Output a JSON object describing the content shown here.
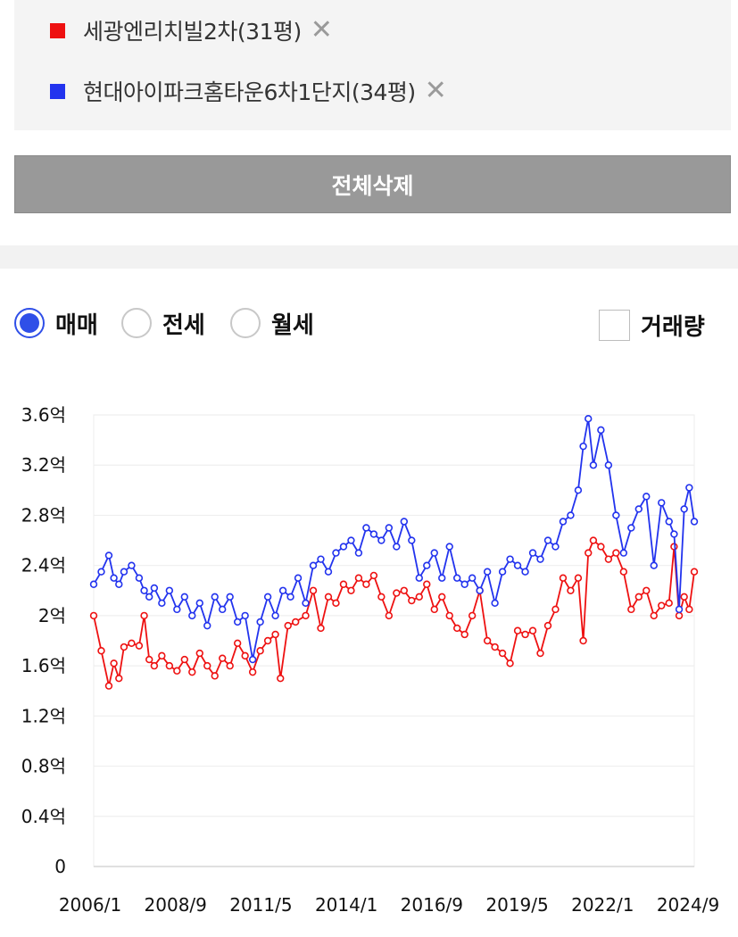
{
  "compare": {
    "items": [
      {
        "label": "세광엔리치빌2차(31평)",
        "color": "#ee1111",
        "remove_icon": "close-icon"
      },
      {
        "label": "현대아이파크홈타운6차1단지(34평)",
        "color": "#2233ee",
        "remove_icon": "close-icon"
      }
    ],
    "delete_all_label": "전체삭제"
  },
  "filters": {
    "radios": [
      {
        "label": "매매",
        "checked": true
      },
      {
        "label": "전세",
        "checked": false
      },
      {
        "label": "월세",
        "checked": false
      }
    ],
    "volume_label": "거래량",
    "volume_checked": false
  },
  "chart_data": {
    "type": "line",
    "x_tick_labels": [
      "2006/1",
      "2008/9",
      "2011/5",
      "2014/1",
      "2016/9",
      "2019/5",
      "2022/1",
      "2024/9"
    ],
    "y_tick_labels": [
      "0",
      "0.4억",
      "0.8억",
      "1.2억",
      "1.6억",
      "2억",
      "2.4억",
      "2.8억",
      "3.2억",
      "3.6억"
    ],
    "y_unit": "억",
    "ylim": [
      0,
      3.6
    ],
    "y_ticks": [
      0,
      0.4,
      0.8,
      1.2,
      1.6,
      2.0,
      2.4,
      2.8,
      3.2,
      3.6
    ],
    "xlim": [
      "2006-01",
      "2025-11"
    ],
    "grid": true,
    "series": [
      {
        "name": "세광엔리치빌2차(31평)",
        "color": "#ee1111",
        "points": [
          [
            "2006-01",
            2.0
          ],
          [
            "2006-04",
            1.72
          ],
          [
            "2006-07",
            1.44
          ],
          [
            "2006-09",
            1.62
          ],
          [
            "2006-11",
            1.5
          ],
          [
            "2007-01",
            1.75
          ],
          [
            "2007-04",
            1.78
          ],
          [
            "2007-07",
            1.76
          ],
          [
            "2007-09",
            2.0
          ],
          [
            "2007-11",
            1.65
          ],
          [
            "2008-01",
            1.6
          ],
          [
            "2008-04",
            1.68
          ],
          [
            "2008-07",
            1.6
          ],
          [
            "2008-10",
            1.56
          ],
          [
            "2009-01",
            1.65
          ],
          [
            "2009-04",
            1.55
          ],
          [
            "2009-07",
            1.7
          ],
          [
            "2009-10",
            1.6
          ],
          [
            "2010-01",
            1.52
          ],
          [
            "2010-04",
            1.66
          ],
          [
            "2010-07",
            1.6
          ],
          [
            "2010-10",
            1.78
          ],
          [
            "2011-01",
            1.68
          ],
          [
            "2011-04",
            1.55
          ],
          [
            "2011-07",
            1.72
          ],
          [
            "2011-10",
            1.8
          ],
          [
            "2012-01",
            1.85
          ],
          [
            "2012-03",
            1.5
          ],
          [
            "2012-06",
            1.92
          ],
          [
            "2012-09",
            1.95
          ],
          [
            "2013-01",
            2.0
          ],
          [
            "2013-04",
            2.2
          ],
          [
            "2013-07",
            1.9
          ],
          [
            "2013-10",
            2.15
          ],
          [
            "2014-01",
            2.1
          ],
          [
            "2014-04",
            2.25
          ],
          [
            "2014-07",
            2.2
          ],
          [
            "2014-10",
            2.3
          ],
          [
            "2015-01",
            2.25
          ],
          [
            "2015-04",
            2.32
          ],
          [
            "2015-07",
            2.15
          ],
          [
            "2015-10",
            2.0
          ],
          [
            "2016-01",
            2.18
          ],
          [
            "2016-04",
            2.2
          ],
          [
            "2016-07",
            2.12
          ],
          [
            "2016-10",
            2.15
          ],
          [
            "2017-01",
            2.25
          ],
          [
            "2017-04",
            2.05
          ],
          [
            "2017-07",
            2.15
          ],
          [
            "2017-10",
            2.0
          ],
          [
            "2018-01",
            1.9
          ],
          [
            "2018-04",
            1.85
          ],
          [
            "2018-07",
            2.0
          ],
          [
            "2018-10",
            2.2
          ],
          [
            "2019-01",
            1.8
          ],
          [
            "2019-04",
            1.75
          ],
          [
            "2019-07",
            1.7
          ],
          [
            "2019-10",
            1.62
          ],
          [
            "2020-01",
            1.88
          ],
          [
            "2020-04",
            1.85
          ],
          [
            "2020-07",
            1.88
          ],
          [
            "2020-10",
            1.7
          ],
          [
            "2021-01",
            1.92
          ],
          [
            "2021-04",
            2.05
          ],
          [
            "2021-07",
            2.3
          ],
          [
            "2021-10",
            2.2
          ],
          [
            "2022-01",
            2.3
          ],
          [
            "2022-03",
            1.8
          ],
          [
            "2022-05",
            2.5
          ],
          [
            "2022-07",
            2.6
          ],
          [
            "2022-10",
            2.55
          ],
          [
            "2023-01",
            2.45
          ],
          [
            "2023-04",
            2.5
          ],
          [
            "2023-07",
            2.35
          ],
          [
            "2023-10",
            2.05
          ],
          [
            "2024-01",
            2.15
          ],
          [
            "2024-04",
            2.2
          ],
          [
            "2024-07",
            2.0
          ],
          [
            "2024-10",
            2.08
          ],
          [
            "2025-01",
            2.1
          ],
          [
            "2025-03",
            2.55
          ],
          [
            "2025-05",
            2.0
          ],
          [
            "2025-07",
            2.15
          ],
          [
            "2025-09",
            2.05
          ],
          [
            "2025-11",
            2.35
          ]
        ]
      },
      {
        "name": "현대아이파크홈타운6차1단지(34평)",
        "color": "#2233ee",
        "points": [
          [
            "2006-01",
            2.25
          ],
          [
            "2006-04",
            2.35
          ],
          [
            "2006-07",
            2.48
          ],
          [
            "2006-09",
            2.3
          ],
          [
            "2006-11",
            2.25
          ],
          [
            "2007-01",
            2.35
          ],
          [
            "2007-04",
            2.4
          ],
          [
            "2007-07",
            2.3
          ],
          [
            "2007-09",
            2.2
          ],
          [
            "2007-11",
            2.15
          ],
          [
            "2008-01",
            2.22
          ],
          [
            "2008-04",
            2.1
          ],
          [
            "2008-07",
            2.2
          ],
          [
            "2008-10",
            2.05
          ],
          [
            "2009-01",
            2.15
          ],
          [
            "2009-04",
            2.0
          ],
          [
            "2009-07",
            2.1
          ],
          [
            "2009-10",
            1.92
          ],
          [
            "2010-01",
            2.15
          ],
          [
            "2010-04",
            2.05
          ],
          [
            "2010-07",
            2.15
          ],
          [
            "2010-10",
            1.95
          ],
          [
            "2011-01",
            2.0
          ],
          [
            "2011-04",
            1.65
          ],
          [
            "2011-07",
            1.95
          ],
          [
            "2011-10",
            2.15
          ],
          [
            "2012-01",
            2.0
          ],
          [
            "2012-04",
            2.2
          ],
          [
            "2012-07",
            2.15
          ],
          [
            "2012-10",
            2.3
          ],
          [
            "2013-01",
            2.1
          ],
          [
            "2013-04",
            2.4
          ],
          [
            "2013-07",
            2.45
          ],
          [
            "2013-10",
            2.35
          ],
          [
            "2014-01",
            2.5
          ],
          [
            "2014-04",
            2.55
          ],
          [
            "2014-07",
            2.6
          ],
          [
            "2014-10",
            2.5
          ],
          [
            "2015-01",
            2.7
          ],
          [
            "2015-04",
            2.65
          ],
          [
            "2015-07",
            2.6
          ],
          [
            "2015-10",
            2.7
          ],
          [
            "2016-01",
            2.55
          ],
          [
            "2016-04",
            2.75
          ],
          [
            "2016-07",
            2.6
          ],
          [
            "2016-10",
            2.3
          ],
          [
            "2017-01",
            2.4
          ],
          [
            "2017-04",
            2.5
          ],
          [
            "2017-07",
            2.3
          ],
          [
            "2017-10",
            2.55
          ],
          [
            "2018-01",
            2.3
          ],
          [
            "2018-04",
            2.25
          ],
          [
            "2018-07",
            2.3
          ],
          [
            "2018-10",
            2.2
          ],
          [
            "2019-01",
            2.35
          ],
          [
            "2019-04",
            2.1
          ],
          [
            "2019-07",
            2.35
          ],
          [
            "2019-10",
            2.45
          ],
          [
            "2020-01",
            2.4
          ],
          [
            "2020-04",
            2.35
          ],
          [
            "2020-07",
            2.5
          ],
          [
            "2020-10",
            2.45
          ],
          [
            "2021-01",
            2.6
          ],
          [
            "2021-04",
            2.55
          ],
          [
            "2021-07",
            2.75
          ],
          [
            "2021-10",
            2.8
          ],
          [
            "2022-01",
            3.0
          ],
          [
            "2022-03",
            3.35
          ],
          [
            "2022-05",
            3.57
          ],
          [
            "2022-07",
            3.2
          ],
          [
            "2022-10",
            3.48
          ],
          [
            "2023-01",
            3.2
          ],
          [
            "2023-04",
            2.8
          ],
          [
            "2023-07",
            2.5
          ],
          [
            "2023-10",
            2.7
          ],
          [
            "2024-01",
            2.85
          ],
          [
            "2024-04",
            2.95
          ],
          [
            "2024-07",
            2.4
          ],
          [
            "2024-10",
            2.9
          ],
          [
            "2025-01",
            2.75
          ],
          [
            "2025-03",
            2.65
          ],
          [
            "2025-05",
            2.05
          ],
          [
            "2025-07",
            2.85
          ],
          [
            "2025-09",
            3.02
          ],
          [
            "2025-11",
            2.75
          ]
        ]
      }
    ]
  }
}
